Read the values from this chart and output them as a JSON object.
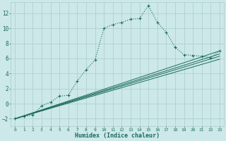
{
  "xlabel": "Humidex (Indice chaleur)",
  "bg_color": "#cce8e8",
  "grid_color": "#aacccc",
  "line_color": "#1a6b5a",
  "xlim": [
    -0.5,
    23.5
  ],
  "ylim": [
    -3,
    13.5
  ],
  "xticks": [
    0,
    1,
    2,
    3,
    4,
    5,
    6,
    7,
    8,
    9,
    10,
    11,
    12,
    13,
    14,
    15,
    16,
    17,
    18,
    19,
    20,
    21,
    22,
    23
  ],
  "yticks": [
    -2,
    0,
    2,
    4,
    6,
    8,
    10,
    12
  ],
  "dotted_series": {
    "x": [
      0,
      1,
      2,
      3,
      4,
      5,
      6,
      7,
      8,
      9,
      10,
      11,
      12,
      13,
      14,
      15,
      16,
      17,
      18,
      19,
      20,
      21,
      22,
      23
    ],
    "y": [
      -2,
      -1.7,
      -1.5,
      -0.3,
      0.2,
      1.0,
      1.1,
      3.0,
      4.5,
      5.8,
      10.0,
      10.5,
      10.8,
      11.2,
      11.3,
      13.0,
      10.8,
      9.5,
      7.5,
      6.5,
      6.4,
      6.3,
      6.1,
      7.0
    ]
  },
  "straight_lines": [
    {
      "x": [
        0,
        23
      ],
      "y": [
        -2,
        5.9
      ]
    },
    {
      "x": [
        0,
        23
      ],
      "y": [
        -2,
        6.3
      ]
    },
    {
      "x": [
        0,
        23
      ],
      "y": [
        -2,
        6.6
      ]
    },
    {
      "x": [
        0,
        23
      ],
      "y": [
        -2,
        7.0
      ]
    }
  ]
}
